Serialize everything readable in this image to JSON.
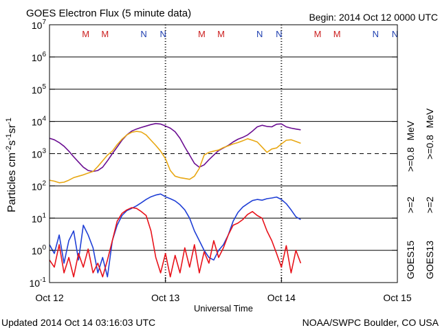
{
  "colors": {
    "goes15_high": "#6a0d91",
    "goes13_high": "#e8a712",
    "goes15_low": "#1f3fd6",
    "goes13_low": "#e8121a",
    "marker_m": "#cc2020",
    "marker_n": "#1f3fb0"
  },
  "chart_data": {
    "type": "line",
    "title": "GOES Electron Flux (5 minute data)",
    "begin_label": "Begin: 2014 Oct 12 0000 UTC",
    "xlabel": "Universal Time",
    "ylabel_main": "Particles cm",
    "ylabel_exp1": "-2",
    "ylabel_mid1": "s",
    "ylabel_exp2": "-1",
    "ylabel_mid2": "sr",
    "ylabel_exp3": "-1",
    "footer_left": "Updated 2014 Oct 14 03:16:03 UTC",
    "footer_right": "NOAA/SWPC Boulder, CO USA",
    "x_range_hours": [
      0,
      72
    ],
    "x_ticks": [
      {
        "hour": 0,
        "label": "Oct 12"
      },
      {
        "hour": 24,
        "label": "Oct 13"
      },
      {
        "hour": 48,
        "label": "Oct 14"
      },
      {
        "hour": 72,
        "label": "Oct 15"
      }
    ],
    "y_scale": "log",
    "y_range": [
      0.1,
      10000000
    ],
    "y_ticks": [
      {
        "base": "10",
        "exp": "-1",
        "value": 0.1
      },
      {
        "base": "10",
        "exp": "0",
        "value": 1
      },
      {
        "base": "10",
        "exp": "1",
        "value": 10
      },
      {
        "base": "10",
        "exp": "2",
        "value": 100
      },
      {
        "base": "10",
        "exp": "3",
        "value": 1000
      },
      {
        "base": "10",
        "exp": "4",
        "value": 10000
      },
      {
        "base": "10",
        "exp": "5",
        "value": 100000
      },
      {
        "base": "10",
        "exp": "6",
        "value": 1000000
      },
      {
        "base": "10",
        "exp": "7",
        "value": 10000000
      }
    ],
    "grid_lines": [
      1,
      10,
      100,
      10000,
      100000,
      1000000
    ],
    "threshold_line": 1000,
    "noon_midnight_markers": [
      {
        "hour": 7.5,
        "label": "M",
        "kind": "m"
      },
      {
        "hour": 11.5,
        "label": "M",
        "kind": "m"
      },
      {
        "hour": 19.5,
        "label": "N",
        "kind": "n"
      },
      {
        "hour": 23.5,
        "label": "N",
        "kind": "n"
      },
      {
        "hour": 31.5,
        "label": "M",
        "kind": "m"
      },
      {
        "hour": 35.5,
        "label": "M",
        "kind": "m"
      },
      {
        "hour": 43.5,
        "label": "N",
        "kind": "n"
      },
      {
        "hour": 47.5,
        "label": "N",
        "kind": "n"
      },
      {
        "hour": 55.5,
        "label": "M",
        "kind": "m"
      },
      {
        "hour": 59.5,
        "label": "M",
        "kind": "m"
      },
      {
        "hour": 67.5,
        "label": "N",
        "kind": "n"
      },
      {
        "hour": 71.5,
        "label": "N",
        "kind": "n"
      }
    ],
    "right_labels": {
      "mev08": "MeV",
      "goes15_ge08": ">=0.8",
      "goes13_ge08": ">=0.8",
      "goes15_ge2": ">=2",
      "goes13_ge2": ">=2",
      "goes15": "GOES15",
      "goes13": "GOES13"
    },
    "series": [
      {
        "name": "GOES15 >=0.8 MeV",
        "color_key": "goes15_high",
        "points": [
          [
            0,
            3000
          ],
          [
            1,
            2700
          ],
          [
            2,
            2200
          ],
          [
            3,
            1700
          ],
          [
            4,
            1200
          ],
          [
            5,
            800
          ],
          [
            6,
            550
          ],
          [
            7,
            380
          ],
          [
            8,
            300
          ],
          [
            9,
            280
          ],
          [
            10,
            300
          ],
          [
            11,
            380
          ],
          [
            12,
            600
          ],
          [
            13,
            1000
          ],
          [
            14,
            1600
          ],
          [
            15,
            2600
          ],
          [
            16,
            3800
          ],
          [
            17,
            5000
          ],
          [
            18,
            5800
          ],
          [
            19,
            6500
          ],
          [
            20,
            7200
          ],
          [
            21,
            8000
          ],
          [
            22,
            8600
          ],
          [
            23,
            8300
          ],
          [
            24,
            7200
          ],
          [
            25,
            6200
          ],
          [
            26,
            4800
          ],
          [
            27,
            3000
          ],
          [
            28,
            1600
          ],
          [
            29,
            900
          ],
          [
            30,
            500
          ],
          [
            31,
            380
          ],
          [
            32,
            450
          ],
          [
            33,
            650
          ],
          [
            34,
            900
          ],
          [
            35,
            1250
          ],
          [
            36,
            1500
          ],
          [
            37,
            1800
          ],
          [
            38,
            2300
          ],
          [
            39,
            2800
          ],
          [
            40,
            3200
          ],
          [
            41,
            3800
          ],
          [
            42,
            5000
          ],
          [
            43,
            6800
          ],
          [
            44,
            7600
          ],
          [
            45,
            7000
          ],
          [
            46,
            6800
          ],
          [
            47,
            8200
          ],
          [
            48,
            8400
          ],
          [
            49,
            6800
          ],
          [
            50,
            6200
          ],
          [
            51,
            5800
          ],
          [
            52,
            5500
          ]
        ]
      },
      {
        "name": "GOES13 >=0.8 MeV",
        "color_key": "goes13_high",
        "points": [
          [
            0,
            150
          ],
          [
            1,
            140
          ],
          [
            2,
            125
          ],
          [
            3,
            130
          ],
          [
            4,
            150
          ],
          [
            5,
            180
          ],
          [
            6,
            200
          ],
          [
            7,
            220
          ],
          [
            8,
            250
          ],
          [
            9,
            280
          ],
          [
            10,
            400
          ],
          [
            11,
            600
          ],
          [
            12,
            900
          ],
          [
            13,
            1200
          ],
          [
            14,
            1900
          ],
          [
            15,
            2800
          ],
          [
            16,
            3800
          ],
          [
            17,
            4600
          ],
          [
            18,
            4900
          ],
          [
            19,
            4700
          ],
          [
            20,
            3800
          ],
          [
            21,
            2600
          ],
          [
            22,
            1800
          ],
          [
            23,
            1200
          ],
          [
            24,
            700
          ],
          [
            25,
            300
          ],
          [
            26,
            200
          ],
          [
            27,
            180
          ],
          [
            28,
            170
          ],
          [
            29,
            160
          ],
          [
            30,
            200
          ],
          [
            31,
            350
          ],
          [
            32,
            900
          ],
          [
            33,
            1100
          ],
          [
            34,
            1200
          ],
          [
            35,
            1300
          ],
          [
            36,
            1550
          ],
          [
            37,
            1750
          ],
          [
            38,
            2000
          ],
          [
            39,
            2200
          ],
          [
            40,
            2500
          ],
          [
            41,
            2900
          ],
          [
            42,
            2600
          ],
          [
            43,
            2300
          ],
          [
            44,
            1600
          ],
          [
            45,
            1100
          ],
          [
            46,
            1400
          ],
          [
            47,
            1500
          ],
          [
            48,
            2000
          ],
          [
            49,
            2600
          ],
          [
            50,
            2700
          ],
          [
            51,
            2400
          ],
          [
            52,
            2100
          ]
        ]
      },
      {
        "name": "GOES15 >=2 MeV",
        "color_key": "goes15_low",
        "points": [
          [
            0,
            1.5
          ],
          [
            1,
            0.8
          ],
          [
            2,
            3
          ],
          [
            3,
            0.4
          ],
          [
            4,
            2
          ],
          [
            5,
            4
          ],
          [
            6,
            0.5
          ],
          [
            7,
            6
          ],
          [
            8,
            3
          ],
          [
            9,
            1.2
          ],
          [
            10,
            0.2
          ],
          [
            11,
            0.6
          ],
          [
            12,
            0.15
          ],
          [
            13,
            2
          ],
          [
            14,
            6
          ],
          [
            15,
            12
          ],
          [
            16,
            17
          ],
          [
            17,
            20
          ],
          [
            18,
            24
          ],
          [
            19,
            30
          ],
          [
            20,
            38
          ],
          [
            21,
            46
          ],
          [
            22,
            52
          ],
          [
            23,
            56
          ],
          [
            24,
            46
          ],
          [
            25,
            40
          ],
          [
            26,
            34
          ],
          [
            27,
            26
          ],
          [
            28,
            18
          ],
          [
            29,
            10
          ],
          [
            30,
            4
          ],
          [
            31,
            2
          ],
          [
            32,
            1
          ],
          [
            33,
            0.6
          ],
          [
            34,
            0.5
          ],
          [
            35,
            1
          ],
          [
            36,
            1.5
          ],
          [
            37,
            3
          ],
          [
            38,
            8
          ],
          [
            39,
            15
          ],
          [
            40,
            22
          ],
          [
            41,
            28
          ],
          [
            42,
            35
          ],
          [
            43,
            38
          ],
          [
            44,
            36
          ],
          [
            45,
            40
          ],
          [
            46,
            42
          ],
          [
            47,
            45
          ],
          [
            48,
            38
          ],
          [
            49,
            28
          ],
          [
            50,
            18
          ],
          [
            51,
            11
          ],
          [
            52,
            9
          ]
        ]
      },
      {
        "name": "GOES13 >=2 MeV",
        "color_key": "goes13_low",
        "points": [
          [
            0,
            0.5
          ],
          [
            1,
            0.3
          ],
          [
            2,
            1.5
          ],
          [
            3,
            0.2
          ],
          [
            4,
            0.6
          ],
          [
            5,
            0.15
          ],
          [
            6,
            0.8
          ],
          [
            7,
            0.3
          ],
          [
            8,
            1.1
          ],
          [
            9,
            0.2
          ],
          [
            10,
            0.4
          ],
          [
            11,
            0.15
          ],
          [
            12,
            0.5
          ],
          [
            13,
            2
          ],
          [
            14,
            8
          ],
          [
            15,
            14
          ],
          [
            16,
            18
          ],
          [
            17,
            21
          ],
          [
            18,
            20
          ],
          [
            19,
            16
          ],
          [
            20,
            12
          ],
          [
            21,
            4
          ],
          [
            22,
            0.6
          ],
          [
            23,
            0.2
          ],
          [
            24,
            0.8
          ],
          [
            25,
            0.15
          ],
          [
            26,
            0.7
          ],
          [
            27,
            0.2
          ],
          [
            28,
            1.2
          ],
          [
            29,
            0.3
          ],
          [
            30,
            1.5
          ],
          [
            31,
            0.2
          ],
          [
            32,
            0.9
          ],
          [
            33,
            0.4
          ],
          [
            34,
            2
          ],
          [
            35,
            0.6
          ],
          [
            36,
            1.2
          ],
          [
            37,
            3
          ],
          [
            38,
            6
          ],
          [
            39,
            7
          ],
          [
            40,
            9
          ],
          [
            41,
            13
          ],
          [
            42,
            16
          ],
          [
            43,
            12
          ],
          [
            44,
            10
          ],
          [
            45,
            4
          ],
          [
            46,
            2
          ],
          [
            47,
            0.8
          ],
          [
            48,
            0.3
          ],
          [
            49,
            1.4
          ],
          [
            50,
            0.2
          ],
          [
            51,
            1.0
          ],
          [
            52,
            0.4
          ]
        ]
      }
    ]
  }
}
